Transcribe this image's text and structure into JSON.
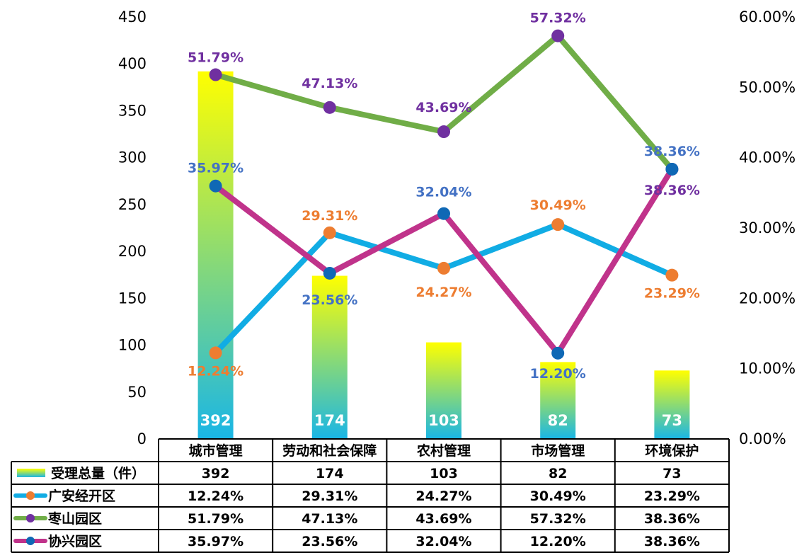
{
  "chart_data": {
    "type": "bar",
    "categories": [
      "城市管理",
      "劳动和社会保障",
      "农村管理",
      "市场管理",
      "环境保护"
    ],
    "y_left": {
      "range": [
        0,
        450
      ],
      "ticks": [
        "0",
        "50",
        "100",
        "150",
        "200",
        "250",
        "300",
        "350",
        "400",
        "450"
      ]
    },
    "y_right": {
      "range": [
        0,
        0.6
      ],
      "ticks": [
        "0.00%",
        "10.00%",
        "20.00%",
        "30.00%",
        "40.00%",
        "50.00%",
        "60.00%"
      ]
    },
    "grid": false,
    "legend": "data-table",
    "series": [
      {
        "name": "受理总量（件）",
        "type": "bar",
        "axis": "left",
        "values": [
          392,
          174,
          103,
          82,
          73
        ],
        "labels": [
          "392",
          "174",
          "103",
          "82",
          "73"
        ],
        "table": [
          "392",
          "174",
          "103",
          "82",
          "73"
        ],
        "colors": {
          "top": "#ffff00",
          "bottom": "#19b6e6"
        }
      },
      {
        "name": "广安经开区",
        "type": "line",
        "axis": "right",
        "values": [
          0.1224,
          0.2931,
          0.2427,
          0.3049,
          0.2329
        ],
        "labels": [
          "12.24%",
          "29.31%",
          "24.27%",
          "30.49%",
          "23.29%"
        ],
        "colors": {
          "line": "#11ace4",
          "marker": "#ed7d31",
          "label": "#ed7d31"
        }
      },
      {
        "name": "枣山园区",
        "type": "line",
        "axis": "right",
        "values": [
          0.5179,
          0.4713,
          0.4369,
          0.5732,
          0.3836
        ],
        "labels": [
          "51.79%",
          "47.13%",
          "43.69%",
          "57.32%",
          "38.36%"
        ],
        "colors": {
          "line": "#70ad47",
          "marker": "#7030a0",
          "label": "#7030a0"
        }
      },
      {
        "name": "协兴园区",
        "type": "line",
        "axis": "right",
        "values": [
          0.3597,
          0.2356,
          0.3204,
          0.122,
          0.3836
        ],
        "labels": [
          "35.97%",
          "23.56%",
          "32.04%",
          "12.20%",
          "38.36%"
        ],
        "colors": {
          "line": "#c0338b",
          "marker": "#0f68b5",
          "label": "#4472c4"
        }
      }
    ]
  }
}
